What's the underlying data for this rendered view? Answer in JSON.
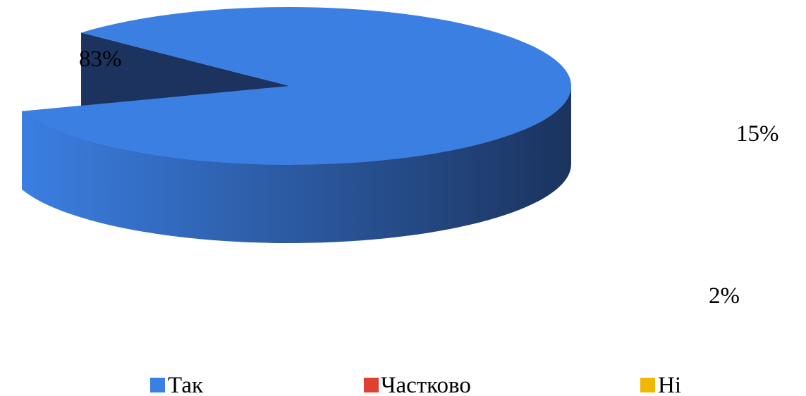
{
  "chart_data": {
    "type": "pie",
    "style": "3d-exploded",
    "categories": [
      "Так",
      "Частково",
      "Ні"
    ],
    "values": [
      83,
      15,
      2
    ],
    "labels": [
      "83%",
      "15%",
      "2%"
    ],
    "colors": [
      "#3b7fe2",
      "#df4032",
      "#f2b705"
    ],
    "side_colors": [
      "#1b335e",
      "#5c1812",
      "#665000"
    ],
    "legend_position": "bottom"
  }
}
